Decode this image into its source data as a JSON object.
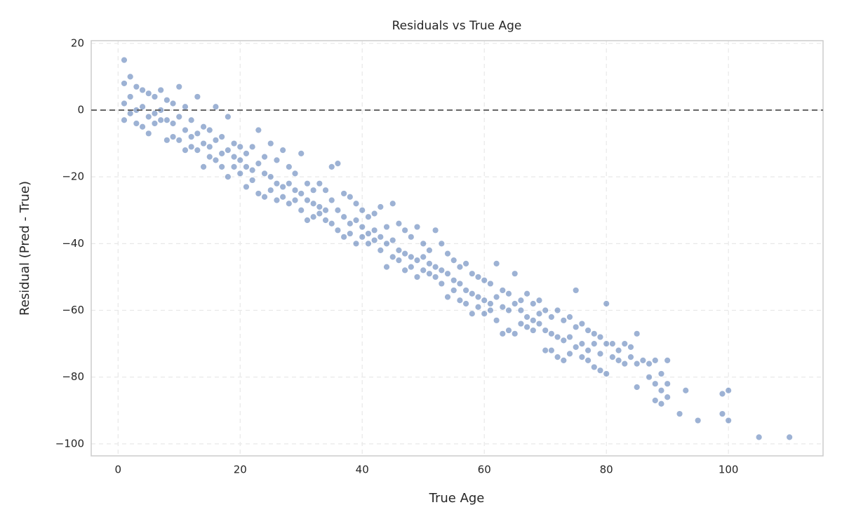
{
  "chart_data": {
    "type": "scatter",
    "title": "Residuals vs True Age",
    "x_label": "True Age",
    "y_label": "Residual (Pred - True)",
    "xlim": [
      -4.4,
      115.5
    ],
    "ylim": [
      -103.6,
      20.8
    ],
    "xticks": [
      0,
      20,
      40,
      60,
      80,
      100
    ],
    "yticks": [
      {
        "value": -100,
        "label": "−100"
      },
      {
        "value": -80,
        "label": "−80"
      },
      {
        "value": -60,
        "label": "−60"
      },
      {
        "value": -40,
        "label": "−40"
      },
      {
        "value": -20,
        "label": "−20"
      },
      0,
      20
    ],
    "grid": true,
    "hline": 0,
    "series": [
      {
        "color": "#4c72b0",
        "x": [
          1,
          1,
          1,
          1,
          2,
          2,
          2,
          3,
          3,
          3,
          4,
          4,
          4,
          5,
          5,
          5,
          6,
          6,
          6,
          7,
          7,
          7,
          8,
          8,
          8,
          9,
          9,
          9,
          10,
          10,
          10,
          11,
          11,
          11,
          12,
          12,
          12,
          13,
          13,
          13,
          14,
          14,
          14,
          15,
          15,
          15,
          16,
          16,
          16,
          17,
          17,
          17,
          18,
          18,
          18,
          19,
          19,
          19,
          20,
          20,
          20,
          21,
          21,
          21,
          22,
          22,
          22,
          23,
          23,
          23,
          24,
          24,
          24,
          25,
          25,
          25,
          26,
          26,
          26,
          27,
          27,
          27,
          28,
          28,
          28,
          29,
          29,
          29,
          30,
          30,
          30,
          31,
          31,
          31,
          32,
          32,
          32,
          33,
          33,
          33,
          34,
          34,
          34,
          35,
          35,
          35,
          36,
          36,
          36,
          37,
          37,
          37,
          38,
          38,
          38,
          39,
          39,
          39,
          40,
          40,
          40,
          41,
          41,
          41,
          42,
          42,
          42,
          43,
          43,
          43,
          44,
          44,
          44,
          45,
          45,
          45,
          46,
          46,
          46,
          47,
          47,
          47,
          48,
          48,
          48,
          49,
          49,
          49,
          50,
          50,
          50,
          51,
          51,
          51,
          52,
          52,
          52,
          53,
          53,
          53,
          54,
          54,
          54,
          55,
          55,
          55,
          56,
          56,
          56,
          57,
          57,
          57,
          58,
          58,
          58,
          59,
          59,
          59,
          60,
          60,
          60,
          61,
          61,
          61,
          62,
          62,
          62,
          63,
          63,
          63,
          64,
          64,
          64,
          65,
          65,
          65,
          66,
          66,
          66,
          67,
          67,
          67,
          68,
          68,
          68,
          69,
          69,
          69,
          70,
          70,
          70,
          71,
          71,
          71,
          72,
          72,
          72,
          73,
          73,
          73,
          74,
          74,
          74,
          75,
          75,
          75,
          76,
          76,
          76,
          77,
          77,
          77,
          78,
          78,
          78,
          79,
          79,
          79,
          80,
          80,
          80,
          81,
          81,
          82,
          82,
          83,
          83,
          84,
          84,
          85,
          85,
          85,
          86,
          87,
          87,
          88,
          88,
          88,
          89,
          89,
          89,
          90,
          90,
          90,
          92,
          93,
          95,
          99,
          99,
          100,
          100,
          105,
          110
        ],
        "values": [
          15,
          8,
          2,
          -3,
          10,
          4,
          -1,
          7,
          0,
          -4,
          6,
          1,
          -5,
          5,
          -2,
          -7,
          4,
          -1,
          -4,
          6,
          0,
          -3,
          3,
          -3,
          -9,
          2,
          -4,
          -8,
          7,
          -2,
          -9,
          1,
          -6,
          -12,
          -3,
          -8,
          -11,
          4,
          -7,
          -12,
          -5,
          -10,
          -17,
          -6,
          -11,
          -14,
          1,
          -9,
          -15,
          -8,
          -13,
          -17,
          -2,
          -12,
          -20,
          -10,
          -14,
          -17,
          -11,
          -15,
          -19,
          -13,
          -17,
          -23,
          -11,
          -18,
          -21,
          -6,
          -16,
          -25,
          -14,
          -19,
          -26,
          -10,
          -20,
          -24,
          -15,
          -22,
          -27,
          -12,
          -23,
          -26,
          -17,
          -22,
          -28,
          -19,
          -24,
          -27,
          -13,
          -25,
          -30,
          -33,
          -22,
          -27,
          -24,
          -28,
          -32,
          -22,
          -29,
          -31,
          -24,
          -30,
          -33,
          -17,
          -27,
          -34,
          -16,
          -30,
          -36,
          -25,
          -32,
          -38,
          -26,
          -34,
          -37,
          -28,
          -33,
          -40,
          -30,
          -35,
          -38,
          -32,
          -37,
          -40,
          -31,
          -36,
          -39,
          -29,
          -38,
          -42,
          -35,
          -40,
          -47,
          -28,
          -39,
          -44,
          -34,
          -42,
          -45,
          -36,
          -43,
          -48,
          -38,
          -44,
          -47,
          -35,
          -45,
          -50,
          -40,
          -44,
          -48,
          -42,
          -46,
          -49,
          -36,
          -47,
          -50,
          -40,
          -48,
          -52,
          -43,
          -49,
          -56,
          -45,
          -51,
          -54,
          -47,
          -52,
          -57,
          -46,
          -54,
          -58,
          -49,
          -55,
          -61,
          -50,
          -56,
          -59,
          -51,
          -57,
          -61,
          -52,
          -58,
          -60,
          -46,
          -56,
          -63,
          -54,
          -59,
          -67,
          -55,
          -60,
          -66,
          -49,
          -58,
          -67,
          -57,
          -60,
          -64,
          -55,
          -62,
          -65,
          -58,
          -63,
          -66,
          -57,
          -61,
          -64,
          -60,
          -66,
          -72,
          -62,
          -67,
          -72,
          -60,
          -68,
          -74,
          -63,
          -69,
          -75,
          -62,
          -68,
          -73,
          -54,
          -65,
          -71,
          -64,
          -70,
          -74,
          -66,
          -72,
          -75,
          -67,
          -70,
          -77,
          -68,
          -73,
          -78,
          -58,
          -70,
          -79,
          -70,
          -74,
          -72,
          -75,
          -70,
          -76,
          -71,
          -74,
          -67,
          -76,
          -83,
          -75,
          -76,
          -80,
          -75,
          -82,
          -87,
          -79,
          -84,
          -88,
          -75,
          -82,
          -86,
          -91,
          -84,
          -93,
          -85,
          -91,
          -84,
          -93,
          -98,
          -98
        ]
      }
    ]
  }
}
